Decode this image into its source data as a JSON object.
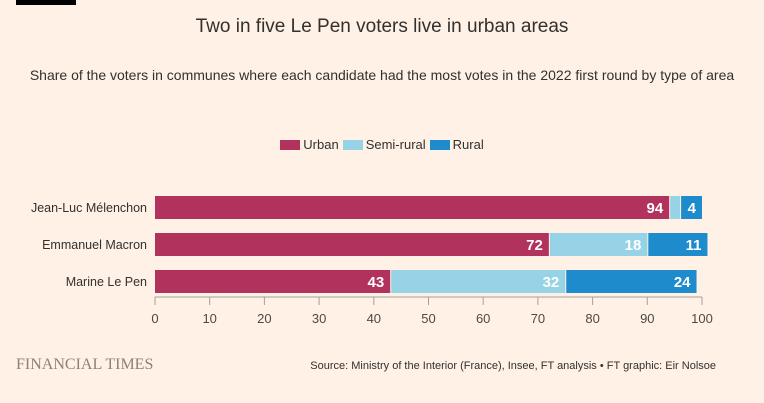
{
  "title": "Two in five Le Pen voters live in urban areas",
  "subtitle": "Share of the voters in communes where each candidate had the most votes in the 2022 first round by type of area",
  "legend": [
    {
      "label": "Urban",
      "color": "#b1325c"
    },
    {
      "label": "Semi-rural",
      "color": "#96d3e6"
    },
    {
      "label": "Rural",
      "color": "#1e8bcd"
    }
  ],
  "footer": {
    "logo": "FINANCIAL TIMES",
    "source": "Source: Ministry of the Interior (France), Insee, FT analysis • FT graphic: Eir Nolsoe"
  },
  "chart_data": {
    "type": "bar",
    "orientation": "horizontal",
    "stacked": true,
    "title": "Two in five Le Pen voters live in urban areas",
    "subtitle": "Share of the voters in communes where each candidate had the most votes in the 2022 first round by type of area",
    "categories": [
      "Jean-Luc Mélenchon",
      "Emmanuel Macron",
      "Marine Le Pen"
    ],
    "series": [
      {
        "name": "Urban",
        "color": "#b1325c",
        "values": [
          94,
          72,
          43
        ],
        "labels": [
          "94",
          "72",
          "43"
        ]
      },
      {
        "name": "Semi-rural",
        "color": "#96d3e6",
        "values": [
          2,
          18,
          32
        ],
        "labels": [
          "",
          "18",
          "32"
        ]
      },
      {
        "name": "Rural",
        "color": "#1e8bcd",
        "values": [
          4,
          11,
          24
        ],
        "labels": [
          "4",
          "11",
          "24"
        ]
      }
    ],
    "xlim": [
      0,
      100
    ],
    "xticks": [
      0,
      10,
      20,
      30,
      40,
      50,
      60,
      70,
      80,
      90,
      100
    ],
    "xlabel": "",
    "ylabel": "",
    "legend_position": "top-center",
    "grid": false
  }
}
